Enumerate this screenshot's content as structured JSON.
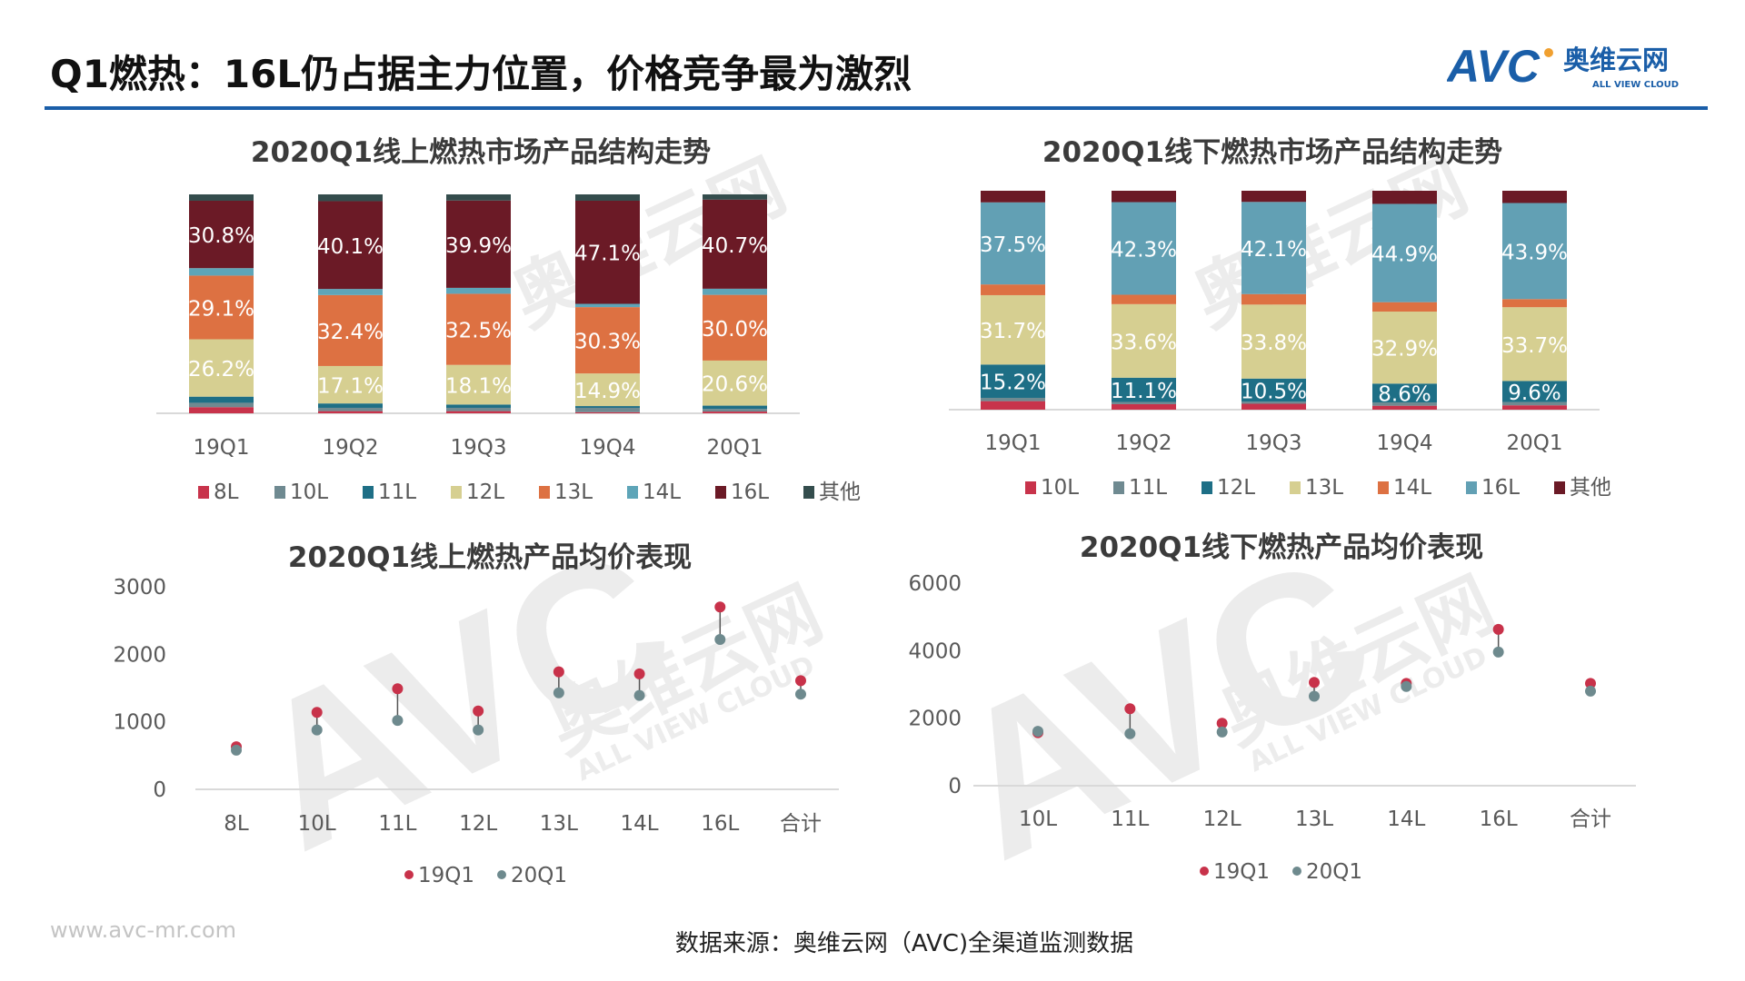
{
  "header": {
    "title": "Q1燃热：16L仍占据主力位置，价格竞争最为激烈",
    "logo_text": "AVC",
    "logo_cn": "奥维云网",
    "logo_en": "ALL VIEW CLOUD",
    "accent": "#1a5ea8"
  },
  "watermark": {
    "main": "AVC",
    "cn": "奥维云网",
    "en": "ALL VIEW CLOUD"
  },
  "footer": {
    "url": "www.avc-mr.com",
    "source": "数据来源：奥维云网（AVC)全渠道监测数据"
  },
  "chart_data": [
    {
      "type": "bar",
      "stacked": true,
      "title": "2020Q1线上燃热市场产品结构走势",
      "categories": [
        "19Q1",
        "19Q2",
        "19Q3",
        "19Q4",
        "20Q1"
      ],
      "unit": "%",
      "legend_position": "bottom",
      "labelled_series": [
        "12L",
        "13L",
        "16L"
      ],
      "series": [
        {
          "name": "8L",
          "color": "#c8334b",
          "values": [
            2.8,
            1.0,
            1.0,
            0.5,
            0.8
          ]
        },
        {
          "name": "10L",
          "color": "#6f8a91",
          "values": [
            2.0,
            1.5,
            1.5,
            2.0,
            1.2
          ]
        },
        {
          "name": "11L",
          "color": "#1e6f86",
          "values": [
            2.8,
            2.0,
            1.5,
            0.8,
            1.5
          ]
        },
        {
          "name": "12L",
          "color": "#d6cf91",
          "values": [
            26.2,
            17.1,
            18.1,
            14.9,
            20.6
          ]
        },
        {
          "name": "13L",
          "color": "#dd7142",
          "values": [
            29.1,
            32.4,
            32.5,
            30.3,
            30.0
          ]
        },
        {
          "name": "14L",
          "color": "#5ea5b8",
          "values": [
            3.4,
            2.8,
            2.7,
            1.5,
            2.8
          ]
        },
        {
          "name": "16L",
          "color": "#6b1a26",
          "values": [
            30.8,
            40.1,
            39.9,
            47.1,
            40.7
          ]
        },
        {
          "name": "其他",
          "color": "#344d4d",
          "values": [
            2.9,
            3.1,
            2.8,
            2.9,
            2.4
          ]
        }
      ]
    },
    {
      "type": "bar",
      "stacked": true,
      "title": "2020Q1线下燃热市场产品结构走势",
      "categories": [
        "19Q1",
        "19Q2",
        "19Q3",
        "19Q4",
        "20Q1"
      ],
      "unit": "%",
      "legend_position": "bottom",
      "labelled_series": [
        "12L",
        "13L",
        "16L"
      ],
      "series": [
        {
          "name": "10L",
          "color": "#c8334b",
          "values": [
            3.9,
            2.5,
            2.7,
            1.8,
            2.0
          ]
        },
        {
          "name": "11L",
          "color": "#6f8a91",
          "values": [
            1.5,
            1.0,
            1.0,
            1.5,
            1.5
          ]
        },
        {
          "name": "12L",
          "color": "#1e6f86",
          "values": [
            15.2,
            11.1,
            10.5,
            8.6,
            9.6
          ]
        },
        {
          "name": "13L",
          "color": "#d6cf91",
          "values": [
            31.7,
            33.6,
            33.8,
            32.9,
            33.7
          ]
        },
        {
          "name": "14L",
          "color": "#dd7142",
          "values": [
            4.9,
            4.3,
            4.8,
            4.3,
            3.7
          ]
        },
        {
          "name": "16L",
          "color": "#62a0b4",
          "values": [
            37.5,
            42.3,
            42.1,
            44.9,
            43.9
          ]
        },
        {
          "name": "其他",
          "color": "#6b1a26",
          "values": [
            5.3,
            5.2,
            5.1,
            6.0,
            5.6
          ]
        }
      ]
    },
    {
      "type": "scatter",
      "subtype": "dumbbell",
      "title": "2020Q1线上燃热产品均价表现",
      "categories": [
        "8L",
        "10L",
        "11L",
        "12L",
        "13L",
        "14L",
        "16L",
        "合计"
      ],
      "ylim": [
        0,
        3000
      ],
      "yticks": [
        0,
        1000,
        2000,
        3000
      ],
      "grid": false,
      "legend_position": "bottom",
      "series": [
        {
          "name": "19Q1",
          "color": "#c8324a",
          "values": [
            630,
            1140,
            1490,
            1160,
            1740,
            1710,
            2700,
            1610
          ]
        },
        {
          "name": "20Q1",
          "color": "#6e8a8e",
          "values": [
            580,
            880,
            1020,
            880,
            1430,
            1390,
            2220,
            1410
          ]
        }
      ]
    },
    {
      "type": "scatter",
      "subtype": "dumbbell",
      "title": "2020Q1线下燃热产品均价表现",
      "categories": [
        "10L",
        "11L",
        "12L",
        "13L",
        "14L",
        "16L",
        "合计"
      ],
      "ylim": [
        0,
        6000
      ],
      "yticks": [
        0,
        2000,
        4000,
        6000
      ],
      "grid": false,
      "legend_position": "bottom",
      "series": [
        {
          "name": "19Q1",
          "color": "#c8324a",
          "values": [
            1570,
            2280,
            1850,
            3060,
            3030,
            4630,
            3030
          ]
        },
        {
          "name": "20Q1",
          "color": "#6e8a8e",
          "values": [
            1610,
            1540,
            1590,
            2650,
            2940,
            3960,
            2800
          ]
        }
      ]
    }
  ]
}
